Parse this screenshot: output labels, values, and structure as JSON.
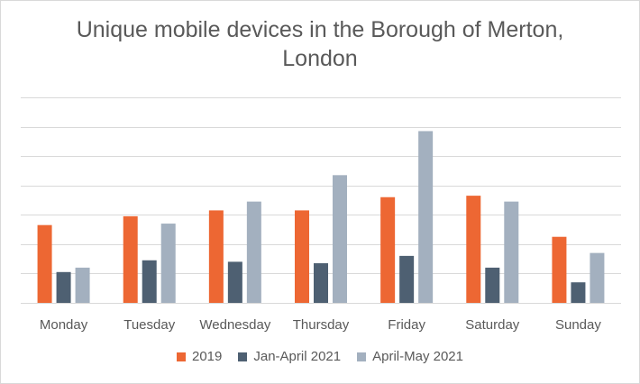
{
  "chart_data": {
    "type": "bar",
    "title_lines": [
      "Unique mobile devices in the Borough of Merton,",
      "London"
    ],
    "categories": [
      "Monday",
      "Tuesday",
      "Wednesday",
      "Thursday",
      "Friday",
      "Saturday",
      "Sunday"
    ],
    "series": [
      {
        "name": "2019",
        "color": "#ED6733",
        "values": [
          2.65,
          2.95,
          3.15,
          3.15,
          3.6,
          3.65,
          2.25
        ]
      },
      {
        "name": "Jan-April 2021",
        "color": "#4E6072",
        "values": [
          1.05,
          1.45,
          1.4,
          1.35,
          1.6,
          1.2,
          0.7
        ]
      },
      {
        "name": "April-May 2021",
        "color": "#A3B0BF",
        "values": [
          1.2,
          2.7,
          3.45,
          4.35,
          5.85,
          3.45,
          1.7
        ]
      }
    ],
    "ylim": [
      0,
      7
    ],
    "grid": true,
    "y_tick_labels_shown": false,
    "legend_position": "bottom"
  }
}
